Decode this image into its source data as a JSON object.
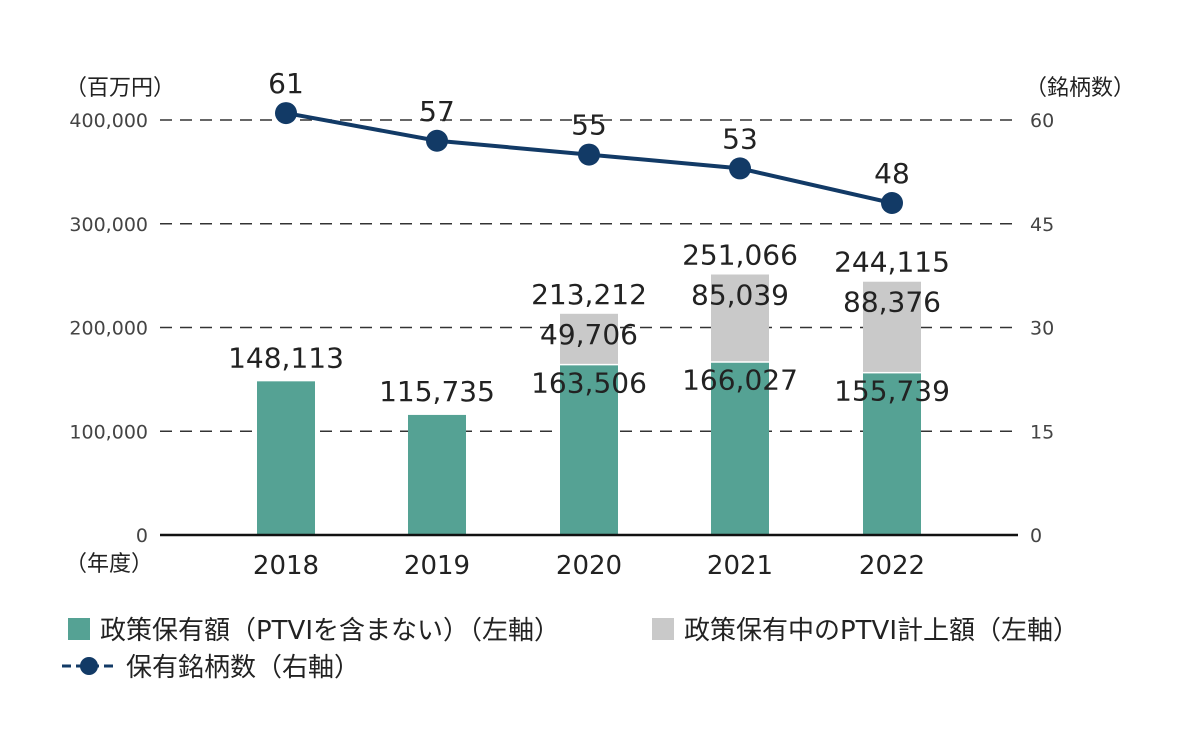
{
  "colors": {
    "policy": "#55a294",
    "ptvi": "#c9c9c9",
    "line": "#123a66",
    "grid": "#333333",
    "axis": "#111111"
  },
  "chart_data": {
    "type": "bar",
    "categories": [
      "2018",
      "2019",
      "2020",
      "2021",
      "2022"
    ],
    "x_label": "（年度）",
    "left_axis": {
      "unit": "（百万円）",
      "ticks": [
        "0",
        "100,000",
        "200,000",
        "300,000",
        "400,000"
      ],
      "tick_values": [
        0,
        100000,
        200000,
        300000,
        400000
      ],
      "range": [
        0,
        400000
      ]
    },
    "right_axis": {
      "unit": "（銘柄数）",
      "ticks": [
        "0",
        "15",
        "30",
        "45",
        "60"
      ],
      "tick_values": [
        0,
        15,
        30,
        45,
        60
      ],
      "range": [
        0,
        60
      ]
    },
    "grid": "dashed",
    "series": [
      {
        "name": "政策保有額（PTVIを含まない）（左軸）",
        "kind": "bar",
        "axis": "left",
        "color_key": "policy",
        "values": [
          148113,
          115735,
          163506,
          166027,
          155739
        ],
        "labels": [
          "148,113",
          "115,735",
          "163,506",
          "166,027",
          "155,739"
        ]
      },
      {
        "name": "政策保有中のPTVI計上額（左軸）",
        "kind": "bar-stacked",
        "axis": "left",
        "color_key": "ptvi",
        "values": [
          null,
          null,
          49706,
          85039,
          88376
        ],
        "labels": [
          null,
          null,
          "49,706",
          "85,039",
          "88,376"
        ]
      },
      {
        "name": "保有銘柄数（右軸）",
        "kind": "line",
        "axis": "right",
        "color_key": "line",
        "values": [
          61,
          57,
          55,
          53,
          48
        ],
        "labels": [
          "61",
          "57",
          "55",
          "53",
          "48"
        ]
      }
    ],
    "totals": [
      null,
      null,
      213212,
      251066,
      244115
    ],
    "total_labels": [
      null,
      null,
      "213,212",
      "251,066",
      "244,115"
    ]
  }
}
